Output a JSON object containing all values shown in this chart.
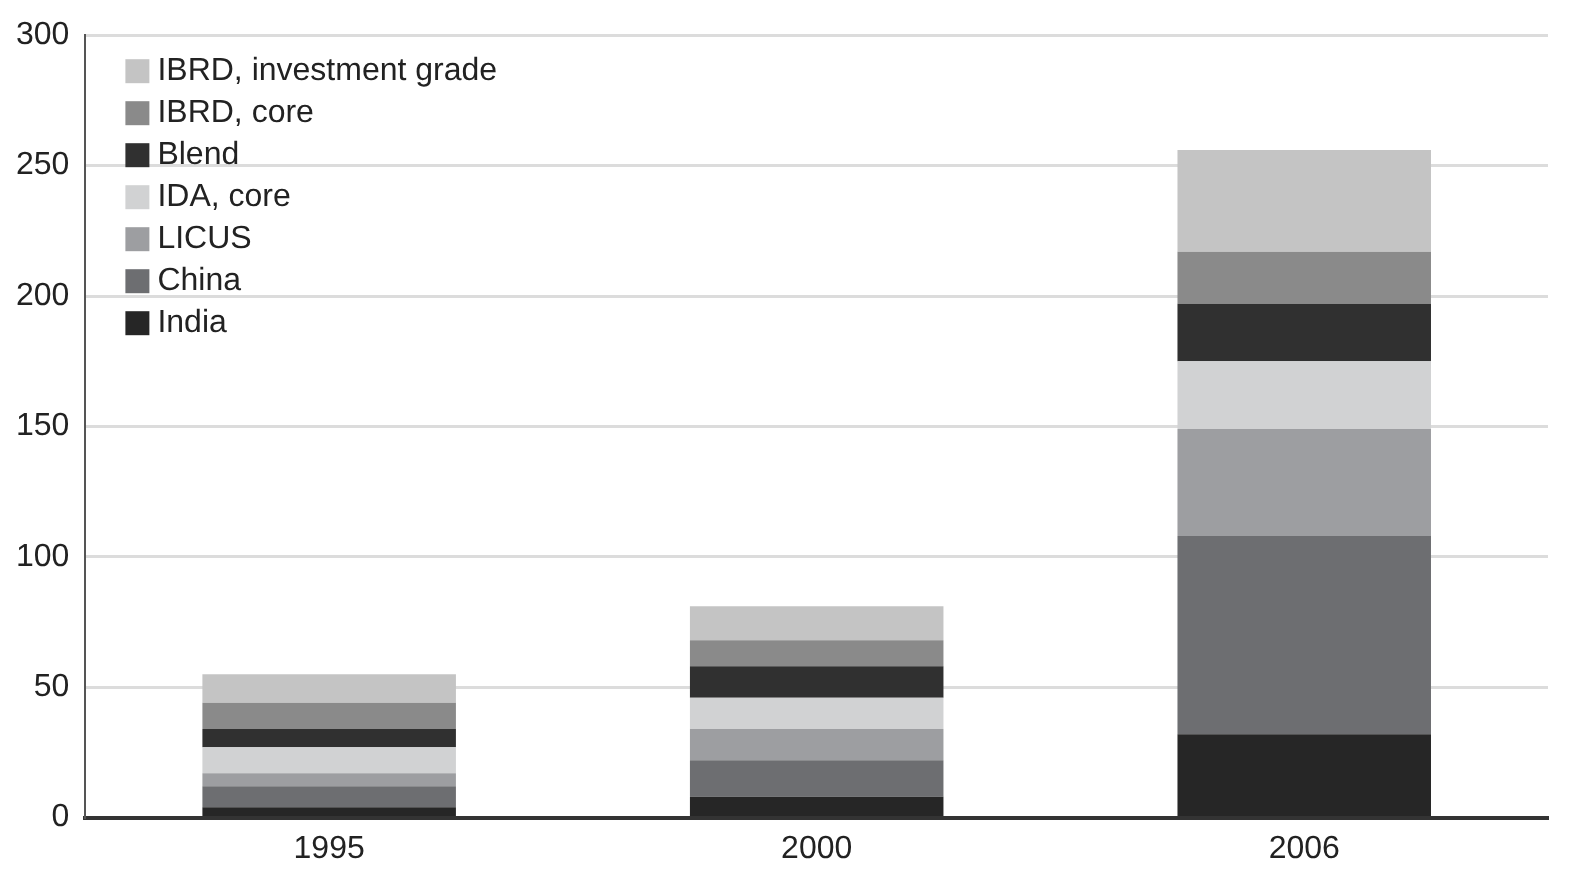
{
  "chart_data": {
    "type": "bar",
    "stacked": true,
    "categories": [
      "1995",
      "2000",
      "2006"
    ],
    "series": [
      {
        "name": "India",
        "color": "#262626",
        "values": [
          4,
          8,
          32
        ]
      },
      {
        "name": "China",
        "color": "#6d6e71",
        "values": [
          8,
          14,
          76
        ]
      },
      {
        "name": "LICUS",
        "color": "#9d9ea1",
        "values": [
          5,
          12,
          41
        ]
      },
      {
        "name": "IDA, core",
        "color": "#d1d2d3",
        "values": [
          10,
          12,
          26
        ]
      },
      {
        "name": "Blend",
        "color": "#303030",
        "values": [
          7,
          12,
          22
        ]
      },
      {
        "name": "IBRD, core",
        "color": "#8a8a8a",
        "values": [
          10,
          10,
          20
        ]
      },
      {
        "name": "IBRD, investment grade",
        "color": "#c4c4c4",
        "values": [
          11,
          13,
          39
        ]
      }
    ],
    "ylim": [
      0,
      300
    ],
    "yticks": [
      0,
      50,
      100,
      150,
      200,
      250,
      300
    ],
    "grid": "y",
    "legend": "top left"
  }
}
